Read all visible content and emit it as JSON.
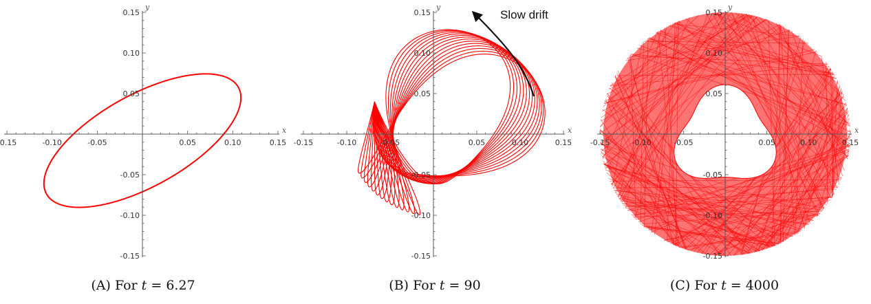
{
  "colors": {
    "curve": "#ff0000",
    "axis": "#555555",
    "text": "#111111"
  },
  "chart_data": [
    {
      "type": "line",
      "panel": "A",
      "xlabel": "x",
      "ylabel": "y",
      "xlim": [
        -0.15,
        0.15
      ],
      "ylim": [
        -0.15,
        0.15
      ],
      "x_ticks": [
        "-0.15",
        "-0.10",
        "-0.05",
        "0.05",
        "0.10",
        "0.15"
      ],
      "y_ticks": [
        "0.15",
        "0.10",
        "0.05",
        "-0.05",
        "-0.10",
        "-0.15"
      ],
      "curve": {
        "shape": "ellipse",
        "center": [
          0,
          -0.008
        ],
        "semi_axes": [
          0.125,
          0.055
        ],
        "tilt_deg": 33,
        "loops": 1
      },
      "caption": {
        "label": "(A)",
        "text": "For",
        "var": "t",
        "eq": "= 6.27"
      }
    },
    {
      "type": "line",
      "panel": "B",
      "xlabel": "x",
      "ylabel": "y",
      "xlim": [
        -0.15,
        0.15
      ],
      "ylim": [
        -0.15,
        0.15
      ],
      "x_ticks": [
        "-0.15",
        "-0.10",
        "-0.05",
        "0.05",
        "0.10",
        "0.15"
      ],
      "y_ticks": [
        "0.15",
        "0.10",
        "0.05",
        "-0.05",
        "-0.10",
        "-0.15"
      ],
      "curve": {
        "shape": "drifting-loops",
        "loops": 14,
        "rotation_span_deg": 50
      },
      "annotation": "Slow drift",
      "caption": {
        "label": "(B)",
        "text": "For",
        "var": "t",
        "eq": "= 90"
      }
    },
    {
      "type": "line",
      "panel": "C",
      "xlabel": "x",
      "ylabel": "y",
      "xlim": [
        -0.15,
        0.15
      ],
      "ylim": [
        -0.15,
        0.15
      ],
      "x_ticks": [
        "-0.15",
        "-0.10",
        "-0.05",
        "0.05",
        "0.10",
        "0.15"
      ],
      "y_ticks": [
        "0.15",
        "0.10",
        "0.05",
        "-0.05",
        "-0.10",
        "-0.15"
      ],
      "curve": {
        "shape": "dense-loops",
        "loops": 220,
        "outer_radius": 0.15,
        "inner_hole": "rounded-triangle"
      },
      "caption": {
        "label": "(C)",
        "text": "For",
        "var": "t",
        "eq": "= 4000"
      }
    }
  ]
}
